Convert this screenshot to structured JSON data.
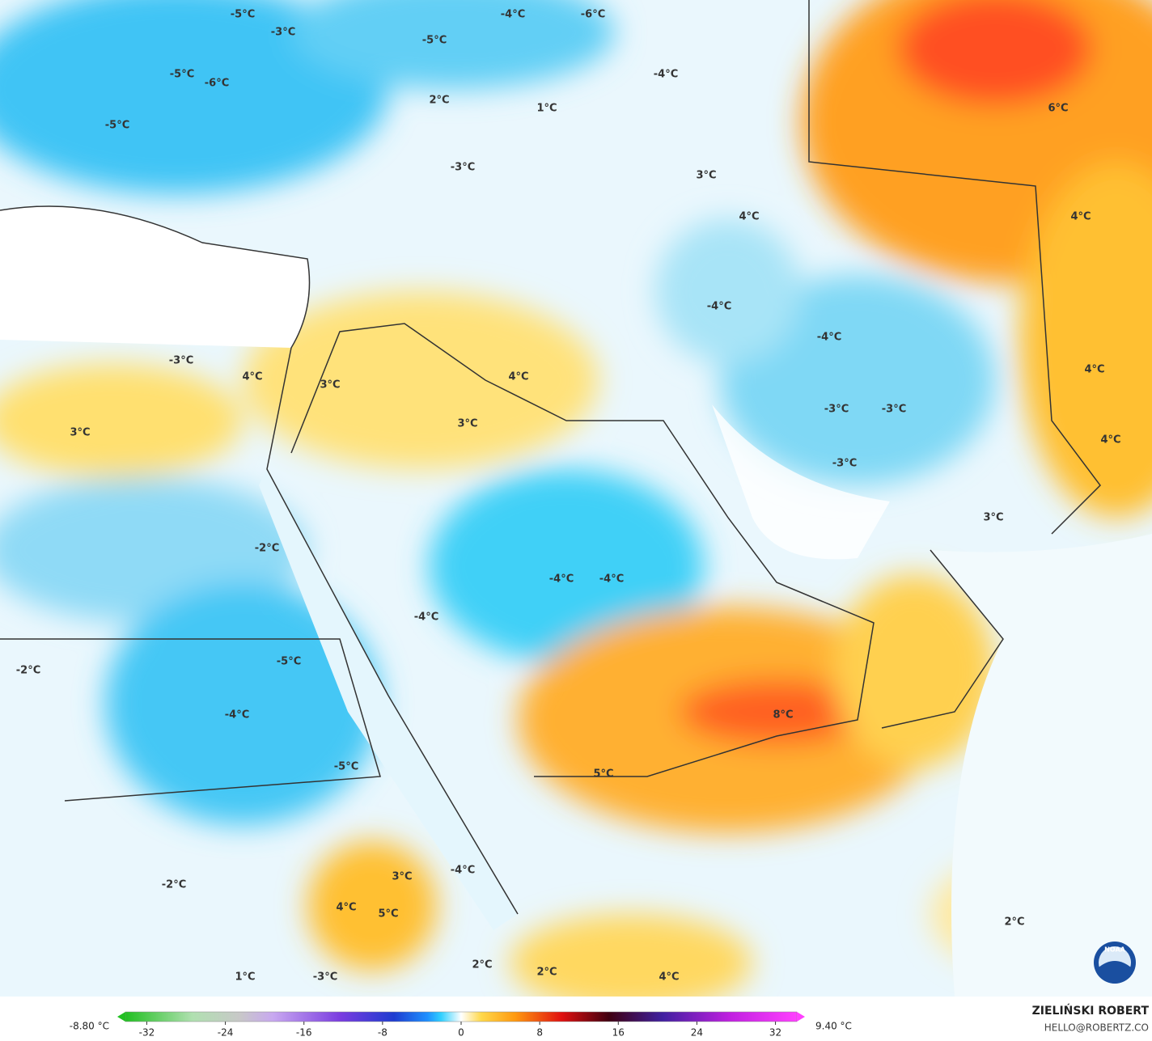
{
  "map": {
    "labels": [
      "-5°C",
      "-4°C",
      "-6°C",
      "-3°C",
      "-5°C",
      "-5°C",
      "-6°C",
      "-5°C",
      "2°C",
      "1°C",
      "-4°C",
      "6°C",
      "-3°C",
      "3°C",
      "4°C",
      "4°C",
      "-4°C",
      "-4°C",
      "4°C",
      "-3°C",
      "4°C",
      "3°C",
      "4°C",
      "-3°C",
      "-3°C",
      "3°C",
      "3°C",
      "4°C",
      "-3°C",
      "3°C",
      "-2°C",
      "-4°C",
      "-4°C",
      "-4°C",
      "-2°C",
      "-5°C",
      "-4°C",
      "8°C",
      "-5°C",
      "5°C",
      "3°C",
      "-4°C",
      "-2°C",
      "4°C",
      "5°C",
      "2°C",
      "2°C",
      "2°C",
      "1°C",
      "-3°C",
      "4°C"
    ],
    "logo_text": "NOAA"
  },
  "colorbar": {
    "min_label": "-8.80 °C",
    "max_label": "9.40 °C",
    "range": [
      -35,
      35
    ],
    "ticks": [
      -32,
      -24,
      -16,
      -8,
      0,
      8,
      16,
      24,
      32
    ]
  },
  "credit": {
    "name": "ZIELIŃSKI ROBERT",
    "email": "HELLO@ROBERTZ.CO"
  }
}
